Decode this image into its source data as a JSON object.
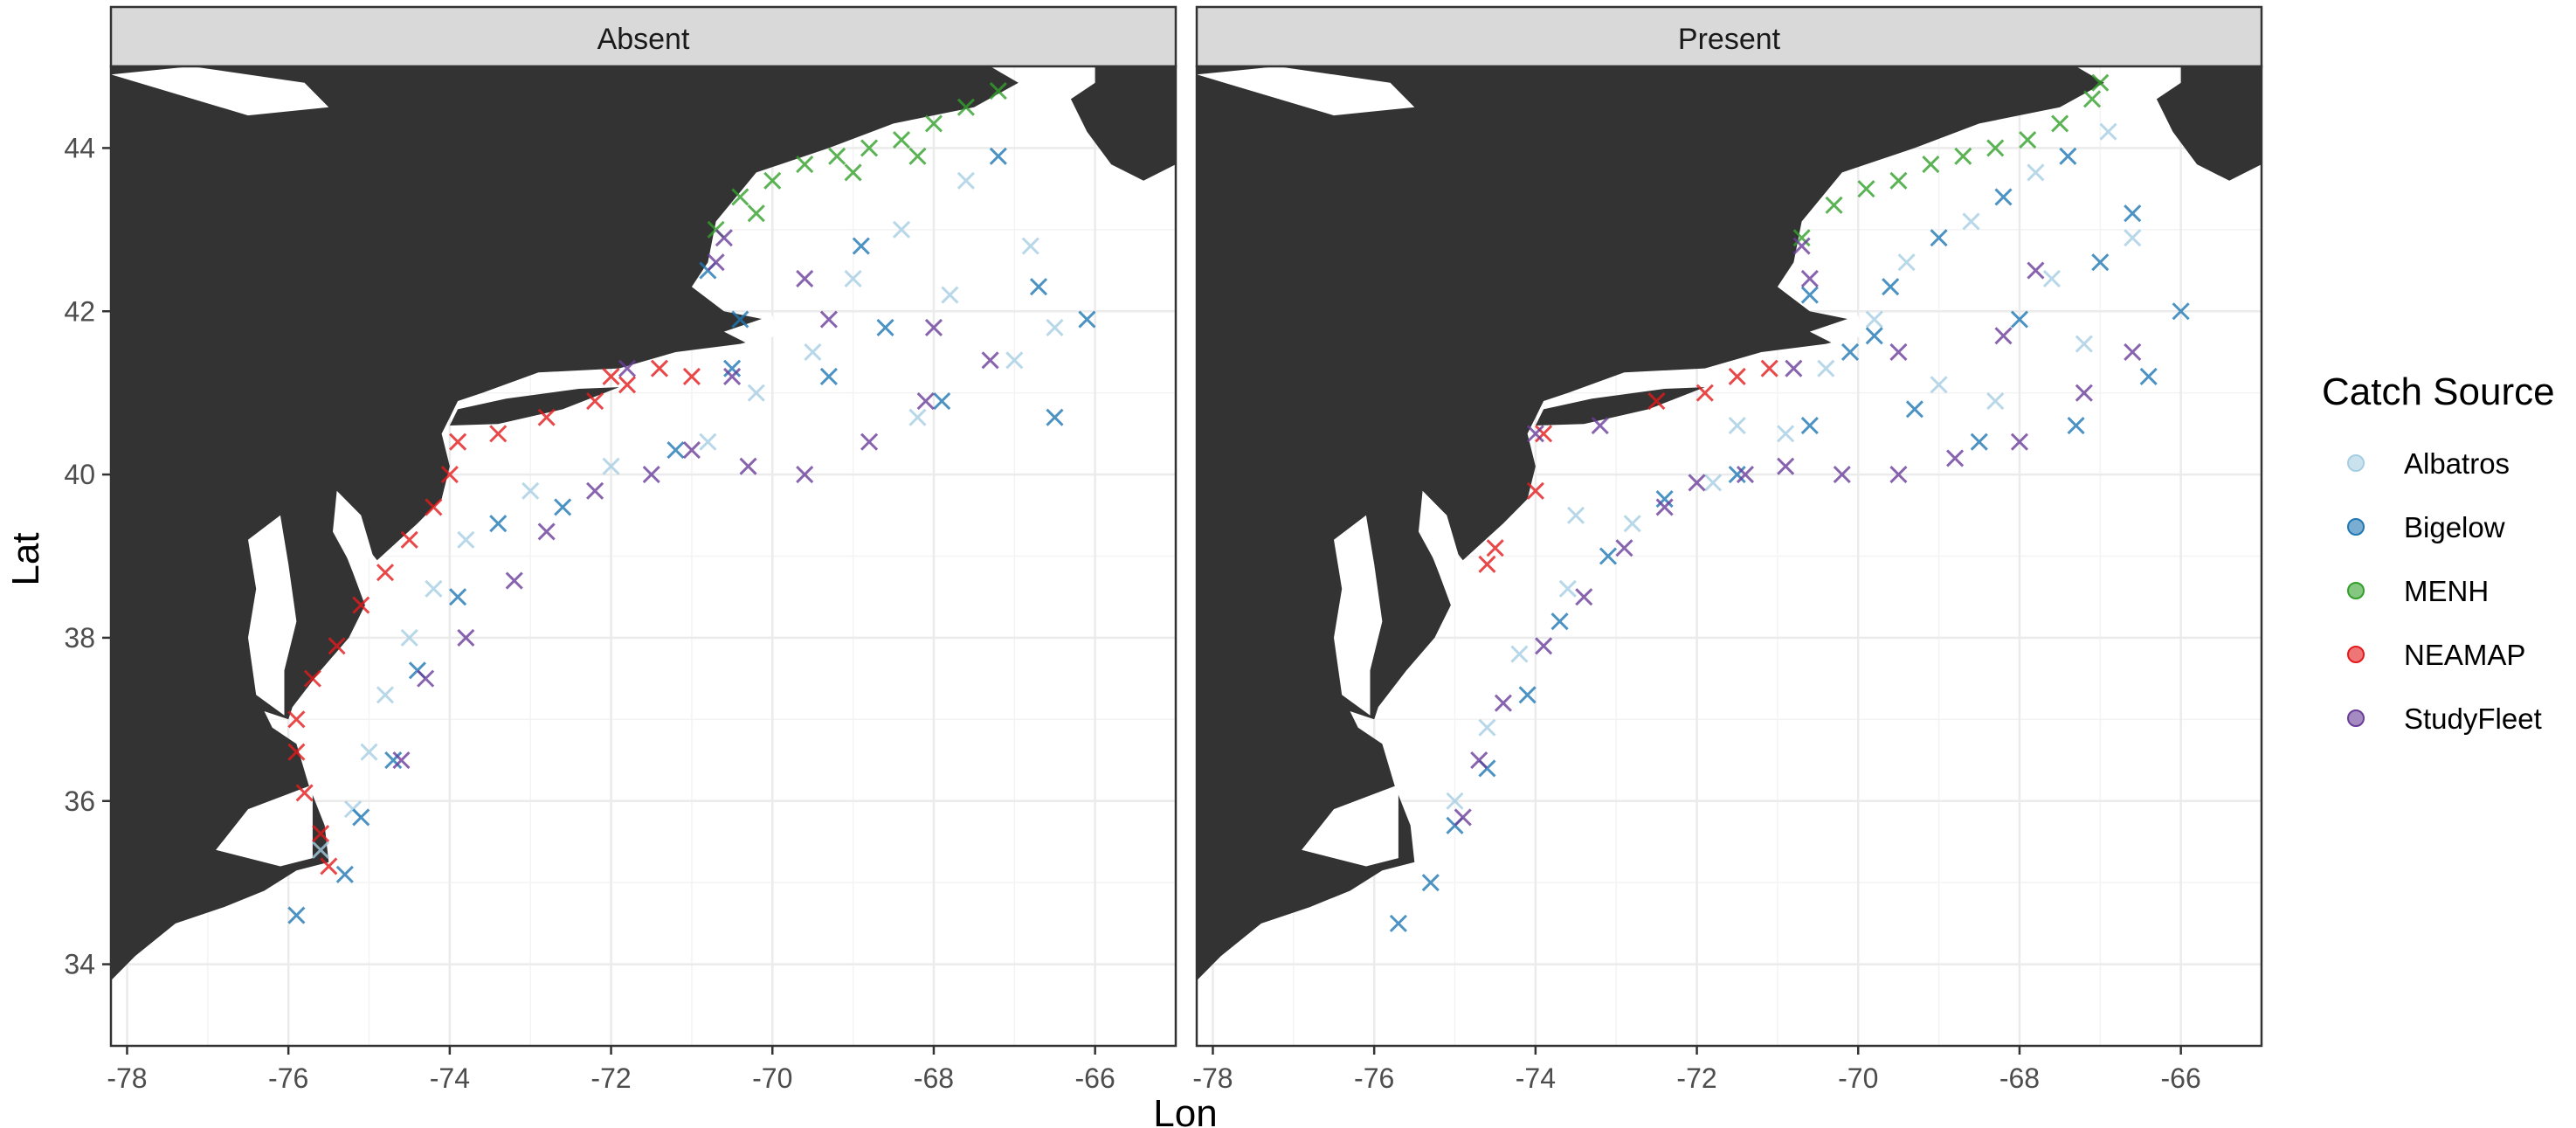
{
  "facets": [
    {
      "label": "Absent"
    },
    {
      "label": "Present"
    }
  ],
  "axes": {
    "x": {
      "title": "Lon",
      "ticks": [
        -78,
        -76,
        -74,
        -72,
        -70,
        -68,
        -66
      ],
      "tick_labels": [
        "-78",
        "-76",
        "-74",
        "-72",
        "-70",
        "-68",
        "-66"
      ],
      "range": [
        -78.2,
        -65.0
      ]
    },
    "y": {
      "title": "Lat",
      "ticks": [
        34,
        36,
        38,
        40,
        42,
        44
      ],
      "tick_labels": [
        "34",
        "36",
        "38",
        "40",
        "42",
        "44"
      ],
      "range": [
        33.0,
        45.0
      ]
    }
  },
  "legend": {
    "title": "Catch Source",
    "position": "right",
    "items": [
      {
        "label": "Albatros",
        "color": "#a6cee3"
      },
      {
        "label": "Bigelow",
        "color": "#1f78b4"
      },
      {
        "label": "MENH",
        "color": "#33a02c"
      },
      {
        "label": "NEAMAP",
        "color": "#e31a1c"
      },
      {
        "label": "StudyFleet",
        "color": "#6a3d9a"
      }
    ]
  },
  "colors": {
    "land": "#333333",
    "strip": "#d9d9d9",
    "grid": "#ebebeb",
    "panel_border": "#333333"
  },
  "chart_data": {
    "type": "scatter",
    "marker": "x",
    "grid": true,
    "series": [
      {
        "name": "Albatros",
        "color": "#a6cee3",
        "points": {
          "Absent": [
            [
              -75.6,
              35.4
            ],
            [
              -75.2,
              35.9
            ],
            [
              -75.0,
              36.6
            ],
            [
              -74.8,
              37.3
            ],
            [
              -74.5,
              38.0
            ],
            [
              -74.2,
              38.6
            ],
            [
              -73.8,
              39.2
            ],
            [
              -73.0,
              39.8
            ],
            [
              -72.0,
              40.1
            ],
            [
              -70.8,
              40.4
            ],
            [
              -70.2,
              41.0
            ],
            [
              -69.5,
              41.5
            ],
            [
              -69.0,
              42.4
            ],
            [
              -68.4,
              43.0
            ],
            [
              -67.6,
              43.6
            ],
            [
              -66.8,
              42.8
            ],
            [
              -67.0,
              41.4
            ],
            [
              -68.2,
              40.7
            ],
            [
              -66.5,
              41.8
            ],
            [
              -67.8,
              42.2
            ]
          ],
          "Present": [
            [
              -75.0,
              36.0
            ],
            [
              -74.6,
              36.9
            ],
            [
              -74.2,
              37.8
            ],
            [
              -73.6,
              38.6
            ],
            [
              -72.8,
              39.4
            ],
            [
              -71.8,
              39.9
            ],
            [
              -70.9,
              40.5
            ],
            [
              -70.4,
              41.3
            ],
            [
              -69.8,
              41.9
            ],
            [
              -69.4,
              42.6
            ],
            [
              -68.6,
              43.1
            ],
            [
              -67.8,
              43.7
            ],
            [
              -66.9,
              44.2
            ],
            [
              -66.6,
              42.9
            ],
            [
              -67.2,
              41.6
            ],
            [
              -68.3,
              40.9
            ],
            [
              -67.6,
              42.4
            ],
            [
              -69.0,
              41.1
            ],
            [
              -71.5,
              40.6
            ],
            [
              -73.5,
              39.5
            ]
          ]
        }
      },
      {
        "name": "Bigelow",
        "color": "#1f78b4",
        "points": {
          "Absent": [
            [
              -75.9,
              34.6
            ],
            [
              -75.3,
              35.1
            ],
            [
              -75.1,
              35.8
            ],
            [
              -74.7,
              36.5
            ],
            [
              -74.4,
              37.6
            ],
            [
              -73.9,
              38.5
            ],
            [
              -73.4,
              39.4
            ],
            [
              -72.6,
              39.6
            ],
            [
              -71.2,
              40.3
            ],
            [
              -70.5,
              41.3
            ],
            [
              -70.8,
              42.5
            ],
            [
              -70.4,
              41.9
            ],
            [
              -69.3,
              41.2
            ],
            [
              -68.9,
              42.8
            ],
            [
              -67.2,
              43.9
            ],
            [
              -66.1,
              41.9
            ],
            [
              -66.7,
              42.3
            ],
            [
              -67.9,
              40.9
            ],
            [
              -66.5,
              40.7
            ],
            [
              -68.6,
              41.8
            ]
          ],
          "Present": [
            [
              -75.7,
              34.5
            ],
            [
              -75.3,
              35.0
            ],
            [
              -75.0,
              35.7
            ],
            [
              -74.6,
              36.4
            ],
            [
              -74.1,
              37.3
            ],
            [
              -73.7,
              38.2
            ],
            [
              -73.1,
              39.0
            ],
            [
              -72.4,
              39.7
            ],
            [
              -71.5,
              40.0
            ],
            [
              -70.6,
              40.6
            ],
            [
              -70.1,
              41.5
            ],
            [
              -69.6,
              42.3
            ],
            [
              -69.0,
              42.9
            ],
            [
              -68.2,
              43.4
            ],
            [
              -67.4,
              43.9
            ],
            [
              -66.6,
              43.2
            ],
            [
              -66.0,
              42.0
            ],
            [
              -66.4,
              41.2
            ],
            [
              -67.3,
              40.6
            ],
            [
              -68.5,
              40.4
            ],
            [
              -69.3,
              40.8
            ],
            [
              -68.0,
              41.9
            ],
            [
              -67.0,
              42.6
            ],
            [
              -69.8,
              41.7
            ],
            [
              -70.6,
              42.2
            ]
          ]
        }
      },
      {
        "name": "MENH",
        "color": "#33a02c",
        "points": {
          "Absent": [
            [
              -70.7,
              43.0
            ],
            [
              -70.4,
              43.4
            ],
            [
              -70.0,
              43.6
            ],
            [
              -69.6,
              43.8
            ],
            [
              -69.2,
              43.9
            ],
            [
              -68.8,
              44.0
            ],
            [
              -68.4,
              44.1
            ],
            [
              -68.0,
              44.3
            ],
            [
              -67.6,
              44.5
            ],
            [
              -67.2,
              44.7
            ],
            [
              -70.2,
              43.2
            ],
            [
              -69.0,
              43.7
            ],
            [
              -68.2,
              43.9
            ]
          ],
          "Present": [
            [
              -70.7,
              42.9
            ],
            [
              -70.3,
              43.3
            ],
            [
              -69.9,
              43.5
            ],
            [
              -69.5,
              43.6
            ],
            [
              -69.1,
              43.8
            ],
            [
              -68.7,
              43.9
            ],
            [
              -68.3,
              44.0
            ],
            [
              -67.9,
              44.1
            ],
            [
              -67.5,
              44.3
            ],
            [
              -67.1,
              44.6
            ],
            [
              -67.0,
              44.8
            ]
          ]
        }
      },
      {
        "name": "NEAMAP",
        "color": "#e31a1c",
        "points": {
          "Absent": [
            [
              -75.5,
              35.2
            ],
            [
              -75.6,
              35.6
            ],
            [
              -75.8,
              36.1
            ],
            [
              -75.9,
              36.6
            ],
            [
              -75.9,
              37.0
            ],
            [
              -75.7,
              37.5
            ],
            [
              -75.4,
              37.9
            ],
            [
              -75.1,
              38.4
            ],
            [
              -74.8,
              38.8
            ],
            [
              -74.5,
              39.2
            ],
            [
              -74.2,
              39.6
            ],
            [
              -74.0,
              40.0
            ],
            [
              -73.9,
              40.4
            ],
            [
              -73.4,
              40.5
            ],
            [
              -72.8,
              40.7
            ],
            [
              -72.2,
              40.9
            ],
            [
              -71.8,
              41.1
            ],
            [
              -71.4,
              41.3
            ],
            [
              -71.0,
              41.2
            ],
            [
              -72.0,
              41.2
            ]
          ],
          "Present": [
            [
              -74.6,
              38.9
            ],
            [
              -74.5,
              39.1
            ],
            [
              -74.0,
              39.8
            ],
            [
              -73.9,
              40.5
            ],
            [
              -71.9,
              41.0
            ],
            [
              -71.5,
              41.2
            ],
            [
              -71.1,
              41.3
            ],
            [
              -72.5,
              40.9
            ]
          ]
        }
      },
      {
        "name": "StudyFleet",
        "color": "#6a3d9a",
        "points": {
          "Absent": [
            [
              -74.6,
              36.5
            ],
            [
              -74.3,
              37.5
            ],
            [
              -73.8,
              38.0
            ],
            [
              -73.2,
              38.7
            ],
            [
              -72.8,
              39.3
            ],
            [
              -72.2,
              39.8
            ],
            [
              -71.5,
              40.0
            ],
            [
              -71.0,
              40.3
            ],
            [
              -70.3,
              40.1
            ],
            [
              -69.6,
              40.0
            ],
            [
              -68.8,
              40.4
            ],
            [
              -68.1,
              40.9
            ],
            [
              -70.5,
              41.2
            ],
            [
              -71.8,
              41.3
            ],
            [
              -70.7,
              42.6
            ],
            [
              -70.6,
              42.9
            ],
            [
              -69.3,
              41.9
            ],
            [
              -68.0,
              41.8
            ],
            [
              -67.3,
              41.4
            ],
            [
              -69.6,
              42.4
            ]
          ],
          "Present": [
            [
              -74.9,
              35.8
            ],
            [
              -74.7,
              36.5
            ],
            [
              -74.4,
              37.2
            ],
            [
              -73.9,
              37.9
            ],
            [
              -73.4,
              38.5
            ],
            [
              -72.9,
              39.1
            ],
            [
              -72.4,
              39.6
            ],
            [
              -72.0,
              39.9
            ],
            [
              -71.4,
              40.0
            ],
            [
              -70.9,
              40.1
            ],
            [
              -70.2,
              40.0
            ],
            [
              -69.5,
              40.0
            ],
            [
              -68.8,
              40.2
            ],
            [
              -68.0,
              40.4
            ],
            [
              -67.2,
              41.0
            ],
            [
              -66.6,
              41.5
            ],
            [
              -70.7,
              42.8
            ],
            [
              -70.6,
              42.4
            ],
            [
              -69.5,
              41.5
            ],
            [
              -70.8,
              41.3
            ],
            [
              -73.2,
              40.6
            ],
            [
              -74.0,
              40.5
            ],
            [
              -68.2,
              41.7
            ],
            [
              -67.8,
              42.5
            ]
          ]
        }
      }
    ]
  }
}
